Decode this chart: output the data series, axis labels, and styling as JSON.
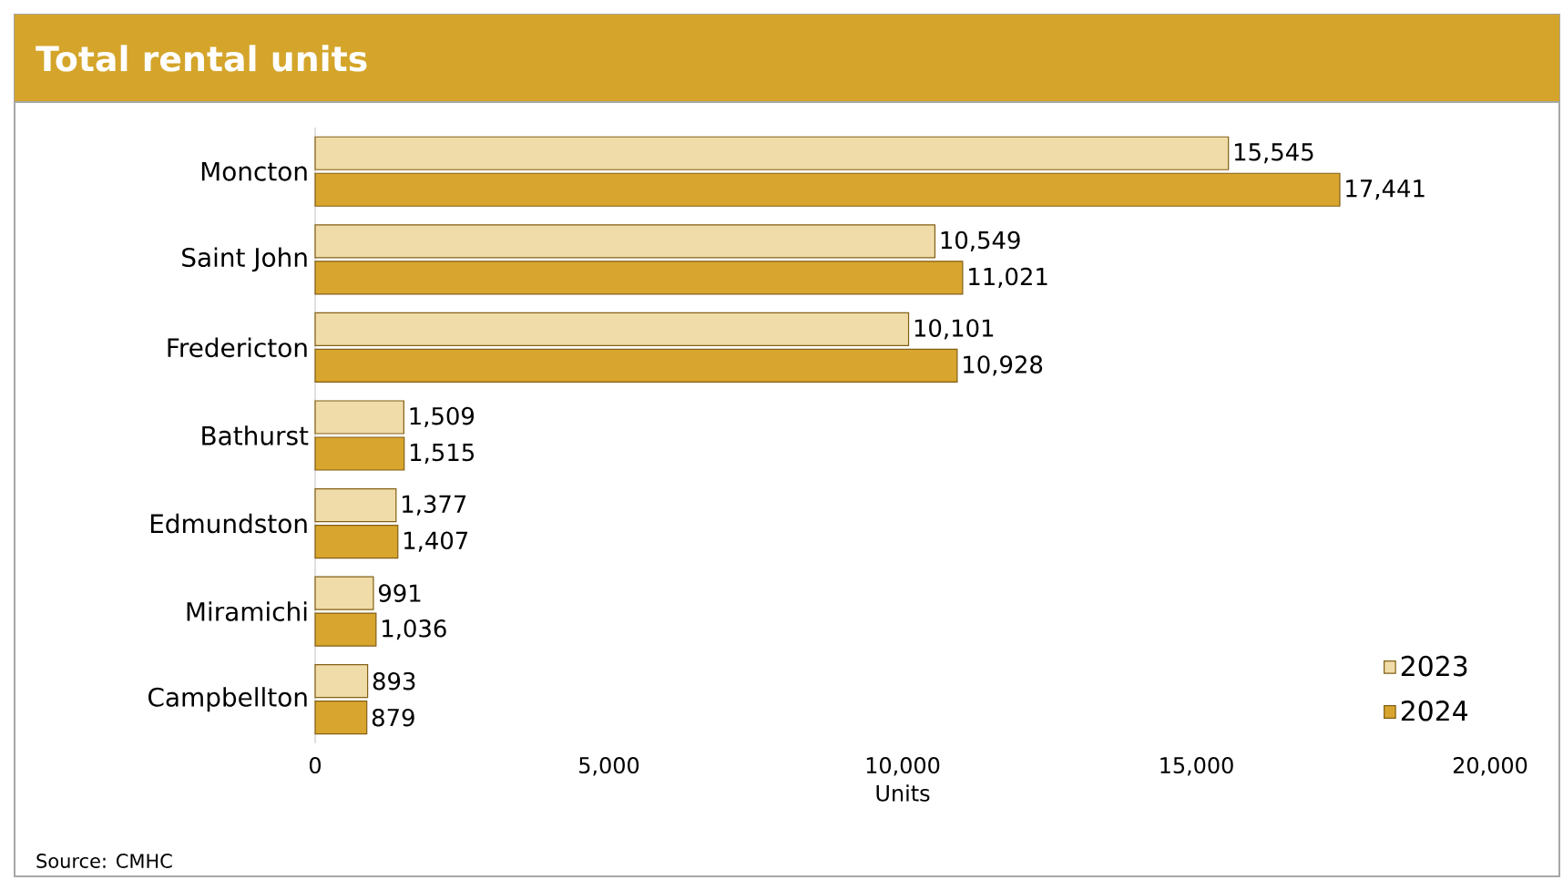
{
  "chart_data": {
    "type": "bar",
    "orientation": "horizontal",
    "title": "Total rental units",
    "xlabel": "Units",
    "annotations": [
      "Source: CMHC"
    ],
    "categories": [
      "Moncton",
      "Saint John",
      "Fredericton",
      "Bathurst",
      "Edmundston",
      "Miramichi",
      "Campbellton"
    ],
    "series": [
      {
        "name": "2023",
        "color": "#f0dca8",
        "values": [
          15545,
          10549,
          10101,
          1509,
          1377,
          991,
          893
        ],
        "value_labels": [
          "15,545",
          "10,549",
          "10,101",
          "1,509",
          "1,377",
          "991",
          "893"
        ]
      },
      {
        "name": "2024",
        "color": "#d8a52e",
        "values": [
          17441,
          11021,
          10928,
          1515,
          1407,
          1036,
          879
        ],
        "value_labels": [
          "17,441",
          "11,021",
          "10,928",
          "1,515",
          "1,407",
          "1,036",
          "879"
        ]
      }
    ],
    "xlim": [
      0,
      20000
    ],
    "xticks": [
      0,
      {
        "value": 5000,
        "label": "5,000"
      },
      {
        "value": 10000,
        "label": "10,000"
      },
      {
        "value": 15000,
        "label": "15,000"
      },
      {
        "value": 20000,
        "label": "20,000"
      }
    ],
    "legend": "bottom right"
  }
}
